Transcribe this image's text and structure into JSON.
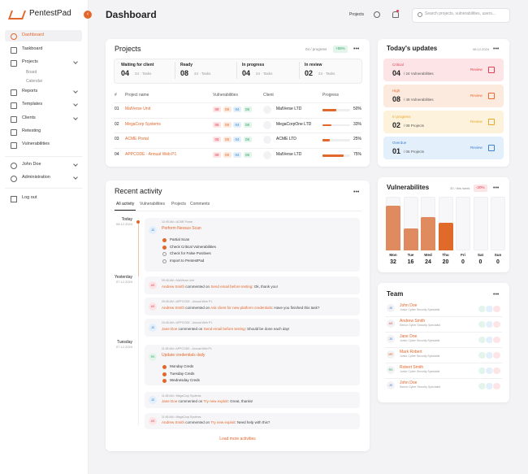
{
  "sidebar": {
    "brand": "PentestPad",
    "nav": [
      "Dashboard",
      "Taskboard",
      "Projects",
      "Board",
      "Calendar",
      "Reports",
      "Templates",
      "Clients",
      "Retesting",
      "Vulnerabilities"
    ],
    "user": "John Doe",
    "admin": "Administration",
    "logout": "Log out"
  },
  "header": {
    "title": "Dashboard",
    "projects_link": "Projects",
    "search_placeholder": "Search projects, vulnerabilities, users..."
  },
  "projects": {
    "title": "Projects",
    "count": "04 / progress",
    "change": "+55%",
    "stats": [
      {
        "label": "Waiting for client",
        "value": "04",
        "sub": "24 · Tasks"
      },
      {
        "label": "Ready",
        "value": "08",
        "sub": "24 · Tasks"
      },
      {
        "label": "In progress",
        "value": "04",
        "sub": "24 · Tasks"
      },
      {
        "label": "In review",
        "value": "02",
        "sub": "24 · Tasks"
      }
    ],
    "columns": [
      "#",
      "Project name",
      "Vulnerabilities",
      "Client",
      "Progress"
    ],
    "rows": [
      {
        "num": "01",
        "name": "MalVerse Unit",
        "vulns": [
          "08",
          "08",
          "04",
          "08"
        ],
        "client": "MalVerse LTD",
        "progress": 50,
        "progress_label": "50%"
      },
      {
        "num": "02",
        "name": "MegaCorp Systems",
        "vulns": [
          "08",
          "08",
          "04",
          "08"
        ],
        "client": "MegaCorpOne LTD",
        "progress": 33,
        "progress_label": "33%"
      },
      {
        "num": "03",
        "name": "ACME Portal",
        "vulns": [
          "08",
          "08",
          "04",
          "08"
        ],
        "client": "ACME LTD",
        "progress": 25,
        "progress_label": "25%"
      },
      {
        "num": "04",
        "name": "APPCODE - Annual Web P1",
        "vulns": [
          "08",
          "08",
          "04",
          "08"
        ],
        "client": "MalVerse LTD",
        "progress": 75,
        "progress_label": "75%"
      }
    ]
  },
  "activity": {
    "title": "Recent activity",
    "tabs": [
      "All activity",
      "Vulnerabilities",
      "Projects",
      "Comments"
    ],
    "dates": [
      {
        "day": "Today",
        "date": "08.12.2024"
      },
      {
        "day": "Yesterday",
        "date": "07.12.2024"
      },
      {
        "day": "Tuesday",
        "date": "07.12.2024"
      }
    ],
    "items": [
      {
        "avatar": "JD",
        "meta": "10:45 AM • ACME Portal",
        "title": "Perform Nessus Scan",
        "checklist": [
          {
            "text": "Partial Scan",
            "done": true
          },
          {
            "text": "Check Critical Vulnerabilities",
            "done": true
          },
          {
            "text": "Check for False Positives",
            "done": false
          },
          {
            "text": "Import to PentestPad",
            "done": false
          }
        ]
      },
      {
        "avatar": "AS",
        "meta": "09:45 AM • MalVerse Unit",
        "user": "Andrew Smith",
        "action": "commented on",
        "target": "Send email before testing",
        "comment": ": Ok, thank you!"
      },
      {
        "avatar": "AS",
        "meta": "09:45 AM • APPCODE - Annual Web P1",
        "user": "Andrew Smith",
        "action": "commented on",
        "target": "Ask client for new platform credentials",
        "comment": ": Have you finished this task?"
      },
      {
        "avatar": "JD",
        "meta": "10:45 AM • APPCODE - Annual Web P1",
        "user": "Jane Doe",
        "action": "commented on",
        "target": "Send email before testing",
        "comment": ": Should be done each day!"
      },
      {
        "avatar": "RS",
        "meta": "11:45 AM • APPCODE - Annual Web P1",
        "title": "Update credentials daily",
        "checklist": [
          {
            "text": "Monday Creds",
            "done": true
          },
          {
            "text": "Tuesday Creds",
            "done": true
          },
          {
            "text": "Wednesday Creds",
            "done": true
          }
        ]
      },
      {
        "avatar": "JD",
        "meta": "11:45 AM • MegaCorp Systems",
        "user": "Jane Doe",
        "action": "commented on",
        "target": "Try new exploit",
        "comment": ": Great, thanks!"
      },
      {
        "avatar": "AS",
        "meta": "11:45 AM • MegaCorp Systems",
        "user": "Andrew Smith",
        "action": "commented on",
        "target": "Try new exploit",
        "comment": ": Need help with this?"
      }
    ],
    "load_more": "Load more activities"
  },
  "updates": {
    "title": "Today's updates",
    "date": "08.12.2024",
    "review": "Review",
    "items": [
      {
        "label": "Critical",
        "value": "04",
        "sub": "/ 24 Vulnerabilities",
        "color": "#e2404f",
        "bg": "#fde4e6"
      },
      {
        "label": "High",
        "value": "08",
        "sub": "/ 48 Vulnerabilities",
        "color": "#e86a2a",
        "bg": "#fdeadf"
      },
      {
        "label": "In progress",
        "value": "02",
        "sub": "/ 08 Projects",
        "color": "#e9a52a",
        "bg": "#fdf3dc"
      },
      {
        "label": "Overdue",
        "value": "01",
        "sub": "/ 06 Projects",
        "color": "#3b82d4",
        "bg": "#e3effb"
      }
    ]
  },
  "vulnerabilities": {
    "title": "Vulnerabilites",
    "week": "32 / this week",
    "change": "-20%",
    "days": [
      "Mon",
      "Tue",
      "Wed",
      "Thu",
      "Fri",
      "Sat",
      "Sun"
    ],
    "values": [
      32,
      16,
      24,
      20,
      0,
      0,
      0
    ],
    "colors": [
      "#e08a5f",
      "#e08a5f",
      "#e08a5f",
      "#e06a2a",
      "#e08a5f",
      "#e08a5f",
      "#e08a5f"
    ]
  },
  "team": {
    "title": "Team",
    "members": [
      {
        "initials": "JD",
        "name": "John Doe",
        "role": "Junior Cyber Security Specialist",
        "color": "#3b82d4"
      },
      {
        "initials": "AS",
        "name": "Andrew Smith",
        "role": "Senior Cyber Security Specialist",
        "color": "#e2404f"
      },
      {
        "initials": "JD",
        "name": "Jane Doe",
        "role": "Junior Cyber Security Specialist",
        "color": "#3b82d4"
      },
      {
        "initials": "MR",
        "name": "Mark Robert",
        "role": "Junior Cyber Security Specialist",
        "color": "#e86a2a"
      },
      {
        "initials": "RS",
        "name": "Robert Smith",
        "role": "Junior Cyber Security Specialist",
        "color": "#2fa56a"
      },
      {
        "initials": "JD",
        "name": "John Doe",
        "role": "Senior Cyber Security Specialist",
        "color": "#3b82d4"
      }
    ]
  }
}
